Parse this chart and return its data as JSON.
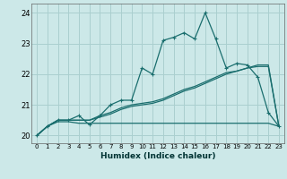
{
  "xlabel": "Humidex (Indice chaleur)",
  "background_color": "#cce8e8",
  "grid_color": "#aacfcf",
  "line_color": "#1a6e6e",
  "xlim": [
    -0.5,
    23.5
  ],
  "ylim": [
    19.75,
    24.3
  ],
  "yticks": [
    20,
    21,
    22,
    23,
    24
  ],
  "xticks": [
    0,
    1,
    2,
    3,
    4,
    5,
    6,
    7,
    8,
    9,
    10,
    11,
    12,
    13,
    14,
    15,
    16,
    17,
    18,
    19,
    20,
    21,
    22,
    23
  ],
  "s1_x": [
    0,
    1,
    2,
    3,
    4,
    5,
    6,
    7,
    8,
    9,
    10,
    11,
    12,
    13,
    14,
    15,
    16,
    17,
    18,
    19,
    20,
    21,
    22,
    23
  ],
  "s1_y": [
    20.0,
    20.3,
    20.5,
    20.5,
    20.65,
    20.35,
    20.65,
    21.0,
    21.15,
    21.15,
    22.2,
    22.0,
    23.1,
    23.2,
    23.35,
    23.15,
    24.0,
    23.15,
    22.2,
    22.35,
    22.3,
    21.9,
    20.75,
    20.3
  ],
  "s2_x": [
    0,
    1,
    2,
    3,
    4,
    5,
    6,
    7,
    8,
    9,
    10,
    11,
    12,
    13,
    14,
    15,
    16,
    17,
    18,
    19,
    20,
    21,
    22,
    23
  ],
  "s2_y": [
    20.0,
    20.3,
    20.5,
    20.5,
    20.5,
    20.5,
    20.65,
    20.75,
    20.9,
    21.0,
    21.05,
    21.1,
    21.2,
    21.35,
    21.5,
    21.6,
    21.75,
    21.9,
    22.05,
    22.1,
    22.2,
    22.3,
    22.3,
    20.3
  ],
  "s3_x": [
    0,
    1,
    2,
    3,
    4,
    5,
    6,
    7,
    8,
    9,
    10,
    11,
    12,
    13,
    14,
    15,
    16,
    17,
    18,
    19,
    20,
    21,
    22,
    23
  ],
  "s3_y": [
    20.0,
    20.3,
    20.5,
    20.5,
    20.5,
    20.5,
    20.6,
    20.7,
    20.85,
    20.95,
    21.0,
    21.05,
    21.15,
    21.3,
    21.45,
    21.55,
    21.7,
    21.85,
    22.0,
    22.1,
    22.2,
    22.25,
    22.25,
    20.3
  ],
  "s4_x": [
    0,
    1,
    2,
    3,
    4,
    5,
    6,
    7,
    8,
    9,
    10,
    11,
    12,
    13,
    14,
    15,
    16,
    17,
    18,
    19,
    20,
    21,
    22,
    23
  ],
  "s4_y": [
    20.0,
    20.3,
    20.45,
    20.45,
    20.4,
    20.4,
    20.4,
    20.4,
    20.4,
    20.4,
    20.4,
    20.4,
    20.4,
    20.4,
    20.4,
    20.4,
    20.4,
    20.4,
    20.4,
    20.4,
    20.4,
    20.4,
    20.4,
    20.3
  ]
}
